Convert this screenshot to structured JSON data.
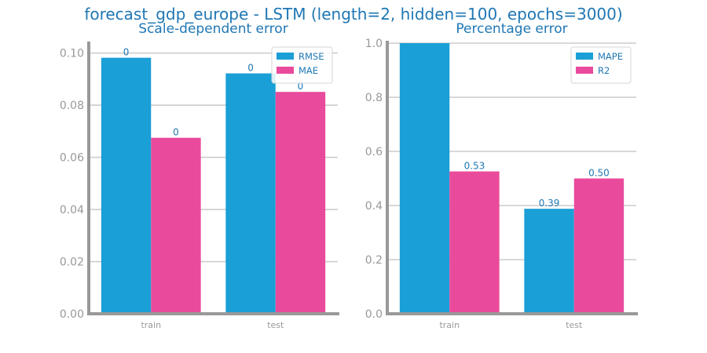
{
  "figure": {
    "suptitle": "forecast_gdp_europe - LSTM (length=2, hidden=100, epochs=3000)"
  },
  "colors": {
    "series_1": "#1a9fd6",
    "series_2": "#ea4a9c",
    "text_accent": "#1f77b4",
    "tick_text": "#999999",
    "spine": "#999999",
    "grid": "#cccccc"
  },
  "chart_data": [
    {
      "type": "bar",
      "title": "Scale-dependent error",
      "xlabel": "",
      "ylabel": "",
      "categories": [
        "train",
        "test"
      ],
      "ylim": [
        0,
        0.1035
      ],
      "yticks": [
        0.0,
        0.02,
        0.04,
        0.06,
        0.08,
        0.1
      ],
      "ytick_labels": [
        "0.00",
        "0.02",
        "0.04",
        "0.06",
        "0.08",
        "0.10"
      ],
      "grid": true,
      "legend_position": "top-right",
      "series": [
        {
          "name": "RMSE",
          "values": [
            0.0982,
            0.0922
          ],
          "labels": [
            "0",
            "0"
          ]
        },
        {
          "name": "MAE",
          "values": [
            0.0675,
            0.0851
          ],
          "labels": [
            "0",
            "0"
          ]
        }
      ]
    },
    {
      "type": "bar",
      "title": "Percentage error",
      "xlabel": "",
      "ylabel": "",
      "categories": [
        "train",
        "test"
      ],
      "ylim": [
        0,
        1.0
      ],
      "yticks": [
        0.0,
        0.2,
        0.4,
        0.6,
        0.8,
        1.0
      ],
      "ytick_labels": [
        "0.0",
        "0.2",
        "0.4",
        "0.6",
        "0.8",
        "1.0"
      ],
      "grid": true,
      "legend_position": "top-right",
      "series": [
        {
          "name": "MAPE",
          "values": [
            1.0,
            0.388
          ],
          "labels": [
            "",
            "0.39"
          ]
        },
        {
          "name": "R2",
          "values": [
            0.526,
            0.5
          ],
          "labels": [
            "0.53",
            "0.50"
          ]
        }
      ]
    }
  ]
}
